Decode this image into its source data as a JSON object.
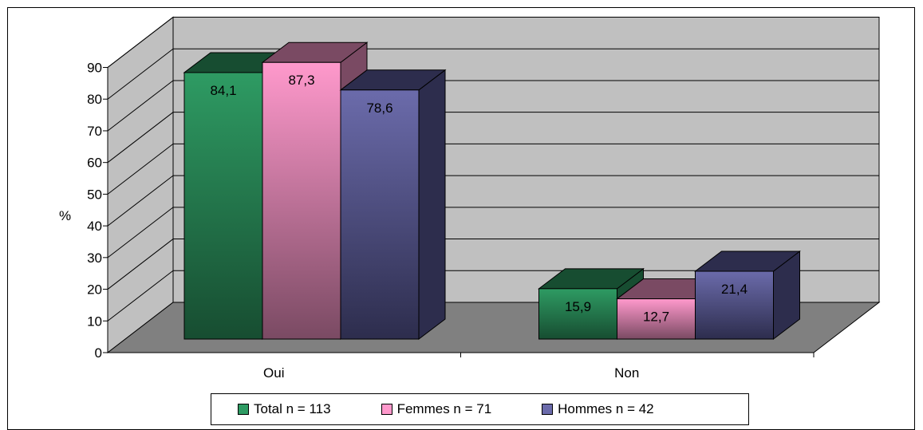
{
  "chart_data": {
    "type": "bar",
    "categories": [
      "Oui",
      "Non"
    ],
    "series": [
      {
        "name": "Total n = 113",
        "values": [
          84.1,
          15.9
        ],
        "labels": [
          "84,1",
          "15,9"
        ],
        "color": "#2e9b63",
        "dark": "#174d31"
      },
      {
        "name": "Femmes n = 71",
        "values": [
          87.3,
          12.7
        ],
        "labels": [
          "87,3",
          "12,7"
        ],
        "color": "#ff99cc",
        "dark": "#7a4a63"
      },
      {
        "name": "Hommes n = 42",
        "values": [
          78.6,
          21.4
        ],
        "labels": [
          "78,6",
          "21,4"
        ],
        "color": "#6b6bab",
        "dark": "#2d2d4d"
      }
    ],
    "ylabel": "%",
    "ylim": [
      0,
      90
    ],
    "yticks": [
      "0",
      "10",
      "20",
      "30",
      "40",
      "50",
      "60",
      "70",
      "80",
      "90"
    ],
    "grid": true,
    "legend_position": "bottom",
    "wall_color": "#c0c0c0",
    "floor_color": "#808080"
  }
}
